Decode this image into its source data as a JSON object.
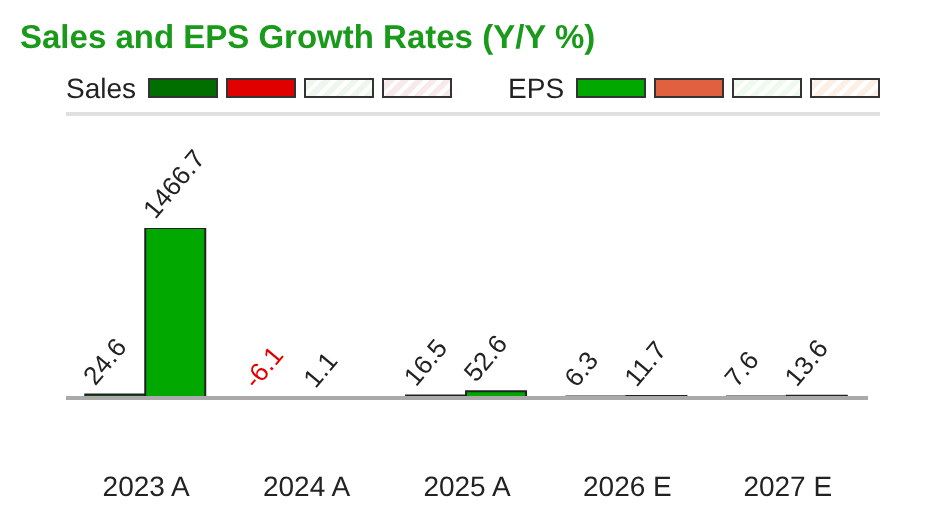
{
  "chart_data": {
    "type": "bar",
    "title": "Sales and EPS Growth Rates (Y/Y %)",
    "categories": [
      "2023  A",
      "2024  A",
      "2025  A",
      "2026  E",
      "2027  E"
    ],
    "series": [
      {
        "name": "Sales",
        "color": "#006f00",
        "colors": [
          "#006f00",
          "#e00000",
          "#006f00",
          "#e4f2e4",
          "#e4f2e4"
        ],
        "values": [
          24.6,
          -6.1,
          16.5,
          6.3,
          7.6
        ]
      },
      {
        "name": "EPS",
        "color": "#00a800",
        "colors": [
          "#00a800",
          "#00a800",
          "#00a800",
          "#e4f7e4",
          "#e4f7e4"
        ],
        "values": [
          1466.7,
          1.1,
          52.6,
          11.7,
          13.6
        ]
      }
    ],
    "data_labels": true,
    "legend": "top left"
  }
}
